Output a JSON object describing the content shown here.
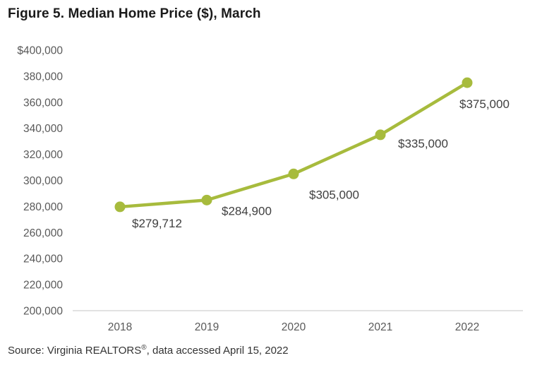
{
  "title": "Figure 5. Median Home Price ($), March",
  "source": {
    "prefix": "Source: Virginia REALTORS",
    "registered_mark": "®",
    "suffix": ", data accessed April 15, 2022"
  },
  "colors": {
    "line": "#a7bb3d",
    "marker": "#a7bb3d",
    "title_text": "#1a1a1a",
    "axis_text": "#595959",
    "data_label_text": "#3f3f3f",
    "axis_line": "#d9d9d9",
    "background": "#ffffff"
  },
  "chart_data": {
    "type": "line",
    "categories": [
      "2018",
      "2019",
      "2020",
      "2021",
      "2022"
    ],
    "values": [
      279712,
      284900,
      305000,
      335000,
      375000
    ],
    "point_labels": [
      "$279,712",
      "$284,900",
      "$305,000",
      "$335,000",
      "$375,000"
    ],
    "series": [
      {
        "name": "Median Home Price",
        "values": [
          279712,
          284900,
          305000,
          335000,
          375000
        ]
      }
    ],
    "title": "Figure 5. Median Home Price ($), March",
    "xlabel": "",
    "ylabel": "",
    "ylim": [
      200000,
      400000
    ],
    "ytick_step": 20000,
    "ytick_labels_top_to_bottom": [
      "$400,000",
      "380,000",
      "360,000",
      "340,000",
      "320,000",
      "300,000",
      "280,000",
      "260,000",
      "240,000",
      "220,000",
      "200,000"
    ],
    "grid": false,
    "legend": "none"
  }
}
